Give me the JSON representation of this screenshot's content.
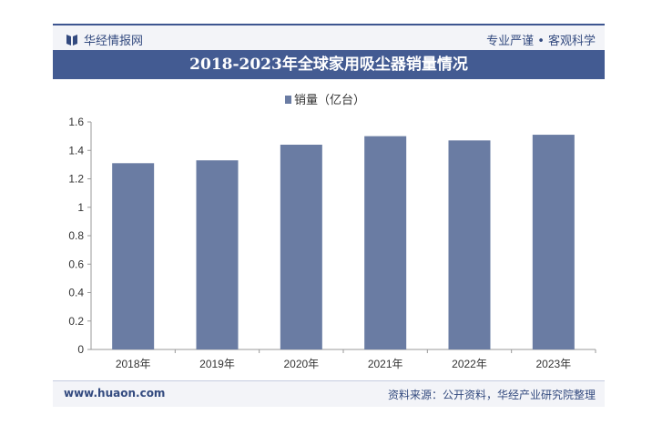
{
  "header": {
    "brand": "华经情报网",
    "slogan": "专业严谨 • 客观科学"
  },
  "footer": {
    "site": "www.huaon.com",
    "source": "资料来源：公开资料，华经产业研究院整理"
  },
  "colors": {
    "bar": "#6a7ca3",
    "title_bg": "#435b92"
  },
  "chart_data": {
    "type": "bar",
    "title": "2018-2023年全球家用吸尘器销量情况",
    "categories": [
      "2018年",
      "2019年",
      "2020年",
      "2021年",
      "2022年",
      "2023年"
    ],
    "series": [
      {
        "name": "销量（亿台）",
        "values": [
          1.31,
          1.33,
          1.44,
          1.5,
          1.47,
          1.51
        ]
      }
    ],
    "ylim": [
      0,
      1.6
    ],
    "yticks": [
      "0",
      "0.2",
      "0.4",
      "0.6",
      "0.8",
      "1",
      "1.2",
      "1.4",
      "1.6"
    ],
    "legend": "top-center",
    "grid": false
  }
}
